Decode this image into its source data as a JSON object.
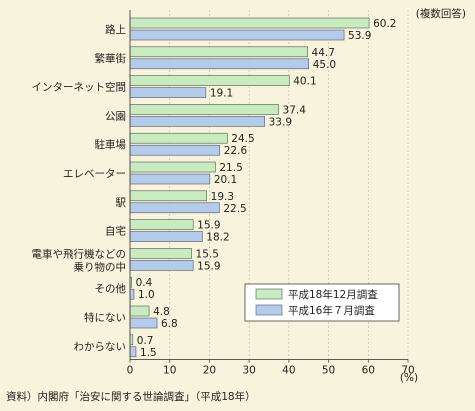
{
  "chart_data": {
    "type": "bar",
    "orientation": "horizontal",
    "note": "(複数回答)",
    "categories": [
      "路上",
      "繁華街",
      "インターネット空間",
      "公園",
      "駐車場",
      "エレベーター",
      "駅",
      "自宅",
      "電車や飛行機などの乗り物の中",
      "その他",
      "特にない",
      "わからない"
    ],
    "category_lines": [
      [
        "路上"
      ],
      [
        "繁華街"
      ],
      [
        "インターネット空間"
      ],
      [
        "公園"
      ],
      [
        "駐車場"
      ],
      [
        "エレベーター"
      ],
      [
        "駅"
      ],
      [
        "自宅"
      ],
      [
        "電車や飛行機などの",
        "乗り物の中"
      ],
      [
        "その他"
      ],
      [
        "特にない"
      ],
      [
        "わからない"
      ]
    ],
    "series": [
      {
        "name": "平成18年12月調査",
        "color": "#c8ecc0",
        "values": [
          60.2,
          44.7,
          40.1,
          37.4,
          24.5,
          21.5,
          19.3,
          15.9,
          15.5,
          0.4,
          4.8,
          0.7
        ]
      },
      {
        "name": "平成16年７月調査",
        "color": "#b4ccec",
        "values": [
          53.9,
          45.0,
          19.1,
          33.9,
          22.6,
          20.1,
          22.5,
          18.2,
          15.9,
          1.0,
          6.8,
          1.5
        ]
      }
    ],
    "xlim": [
      0,
      70
    ],
    "xticks": [
      0,
      10,
      20,
      30,
      40,
      50,
      60,
      70
    ],
    "xunit": "(%)",
    "legend_position": "bottom-right"
  },
  "source": "資料）内閣府「治安に関する世論調査」（平成18年）"
}
